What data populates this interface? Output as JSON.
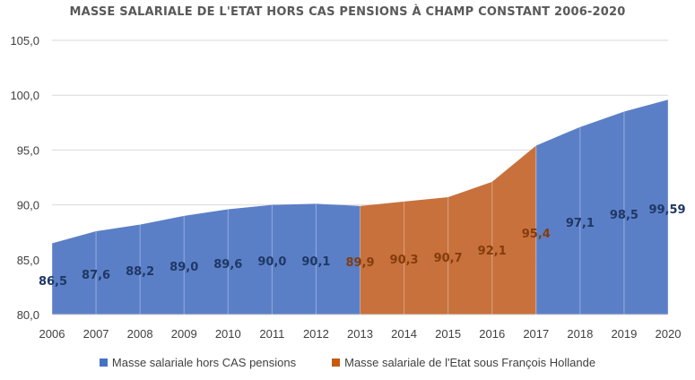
{
  "chart_data": {
    "type": "area",
    "title": "MASSE SALARIALE DE L'ETAT HORS CAS PENSIONS À CHAMP CONSTANT 2006-2020",
    "x": [
      "2006",
      "2007",
      "2008",
      "2009",
      "2010",
      "2011",
      "2012",
      "2013",
      "2014",
      "2015",
      "2016",
      "2017",
      "2018",
      "2019",
      "2020"
    ],
    "values": [
      86.5,
      87.6,
      88.2,
      89.0,
      89.6,
      90.0,
      90.1,
      89.9,
      90.3,
      90.7,
      92.1,
      95.4,
      97.1,
      98.5,
      99.59
    ],
    "value_labels": [
      "86,5",
      "87,6",
      "88,2",
      "89,0",
      "89,6",
      "90,0",
      "90,1",
      "89,9",
      "90,3",
      "90,7",
      "92,1",
      "95,4",
      "97,1",
      "98,5",
      "99,59"
    ],
    "series": [
      {
        "name": "Masse salariale hors CAS pensions",
        "color": "#5b7fc7",
        "label_color": "#1f3864",
        "range": [
          "2006",
          "2013"
        ]
      },
      {
        "name": "Masse salariale de l'Etat sous François Hollande",
        "color": "#c8713c",
        "label_color": "#843c0c",
        "range": [
          "2013",
          "2017"
        ]
      },
      {
        "name": "Masse salariale hors CAS pensions",
        "color": "#5b7fc7",
        "label_color": "#1f3864",
        "range": [
          "2017",
          "2020"
        ]
      }
    ],
    "ylim": [
      80.0,
      105.0
    ],
    "yticks": [
      "80,0",
      "85,0",
      "90,0",
      "95,0",
      "100,0",
      "105,0"
    ],
    "grid": true,
    "legend_position": "bottom",
    "legend": [
      {
        "label": "Masse salariale hors CAS pensions",
        "color": "#4472c4"
      },
      {
        "label": "Masse salariale de l'Etat sous François Hollande",
        "color": "#c55a11"
      }
    ]
  }
}
